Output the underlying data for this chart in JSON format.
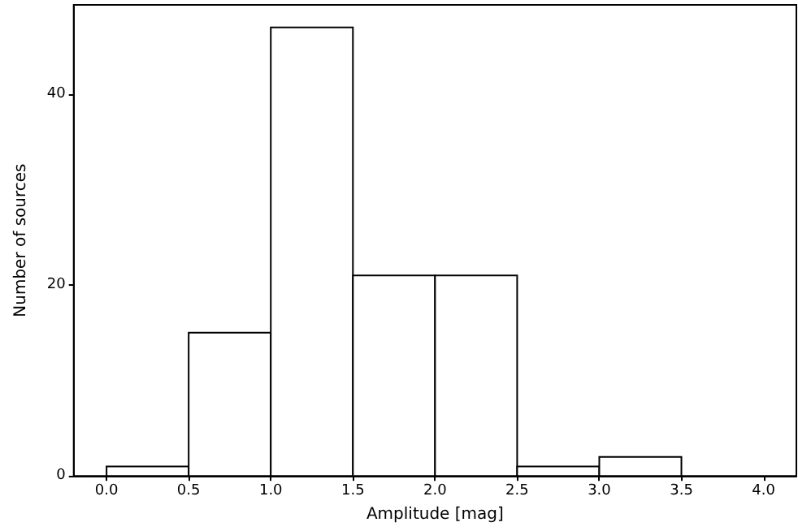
{
  "chart_data": {
    "type": "histogram",
    "xlabel": "Amplitude [mag]",
    "ylabel": "Number of sources",
    "bins": [
      0,
      0.5,
      1,
      1.5,
      2,
      2.5,
      3,
      3.5,
      4
    ],
    "values": [
      1,
      15,
      47,
      21,
      21,
      1,
      2,
      0
    ],
    "color": "#ffffff",
    "xlim": [
      -0.2,
      4.2
    ],
    "xticks": [
      {
        "value": 0,
        "label": "0.0"
      },
      {
        "value": 0.5,
        "label": "0.5"
      },
      {
        "value": 1,
        "label": "1.0"
      },
      {
        "value": 1.5,
        "label": "1.5"
      },
      {
        "value": 2,
        "label": "2.0"
      },
      {
        "value": 2.5,
        "label": "2.5"
      },
      {
        "value": 3,
        "label": "3.0"
      },
      {
        "value": 3.5,
        "label": "3.5"
      },
      {
        "value": 4,
        "label": "4.0"
      }
    ],
    "ylim": [
      0,
      49.35
    ],
    "yticks": [
      0,
      20,
      40
    ],
    "grid": false
  }
}
